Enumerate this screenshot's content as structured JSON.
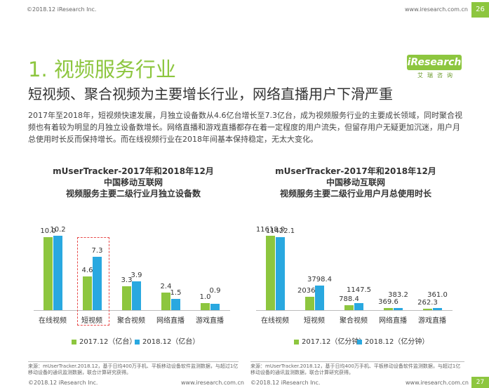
{
  "header": {
    "copyright": "©2018.12 iResearch Inc.",
    "url": "www.iresearch.com.cn",
    "page": "26"
  },
  "section_title": "1. 视频服务行业",
  "logo": {
    "brand": "iResearch",
    "subtitle": "艾瑞咨询"
  },
  "headline": "短视频、聚合视频为主要增长行业，网络直播用户下滑严重",
  "paragraph": "2017年至2018年，短视频快速发展，月独立设备数从4.6亿台增长至7.3亿台，成为视频服务行业的主要成长领域，同时聚合视频也有着较为明显的月独立设备数增长。网络直播和游戏直播都存在着一定程度的用户流失，但留存用户无疑更加沉迷，用户月总使用时长反而保持增长。而在线视频行业在2018年间基本保持稳定，无太大变化。",
  "chart_data": [
    {
      "type": "bar",
      "title_lines": [
        "mUserTracker-2017年和2018年12月",
        "中国移动互联网",
        "视频服务主要二级行业月独立设备数"
      ],
      "categories": [
        "在线视频",
        "短视频",
        "聚合视频",
        "网络直播",
        "游戏直播"
      ],
      "series": [
        {
          "name": "2017.12（亿台）",
          "values": [
            10.0,
            4.6,
            3.3,
            2.4,
            1.0
          ],
          "labels": [
            "10.0",
            "4.6",
            "3.3",
            "2.4",
            "1.0"
          ]
        },
        {
          "name": "2018.12（亿台）",
          "values": [
            10.2,
            7.3,
            3.9,
            1.5,
            0.9
          ],
          "labels": [
            "10.2",
            "7.3",
            "3.9",
            "1.5",
            "0.9"
          ]
        }
      ],
      "ylim": [
        0,
        10.2
      ],
      "highlight": "短视频",
      "legend_position": "bottom",
      "source": "来源：mUserTracker.2018.12，基于日均400万手机、平板移动设备软件监测数据，与超过1亿移动设备的通讯监测数据，联合计算研究获得。"
    },
    {
      "type": "bar",
      "title_lines": [
        "mUserTracker-2017年和2018年12月",
        "中国移动互联网",
        "视频服务主要二级行业用户月总使用时长"
      ],
      "categories": [
        "在线视频",
        "短视频",
        "聚合视频",
        "网络直播",
        "游戏直播"
      ],
      "series": [
        {
          "name": "2017.12（亿分钟）",
          "values": [
            11618.0,
            2036.9,
            788.4,
            369.6,
            262.3
          ],
          "labels": [
            "11618.0",
            "2036.9",
            "788.4",
            "369.6",
            "262.3"
          ]
        },
        {
          "name": "2018.12（亿分钟）",
          "values": [
            11422.1,
            3798.4,
            1147.5,
            383.2,
            361.0
          ],
          "labels": [
            "11422.1",
            "3798.4",
            "1147.5",
            "383.2",
            "361.0"
          ]
        }
      ],
      "ylim": [
        0,
        11618.0
      ],
      "legend_position": "bottom",
      "source": "来源：mUserTracker.2018.12，基于日均400万手机、平板移动设备软件监测数据，与超过1亿移动设备的通讯监测数据，联合计算研究获得。"
    }
  ],
  "footer": {
    "left_copyright": "©2018.12 iResearch Inc.",
    "left_url": "www.iresearch.com.cn",
    "right_copyright": "©2018.12 iResearch Inc.",
    "right_url": "www.iresearch.com.cn",
    "page": "27"
  },
  "colors": {
    "accent": "#8dc63f",
    "series_2017": "#8dc63f",
    "series_2018": "#29a8e0",
    "highlight_border": "#e84a4a"
  }
}
